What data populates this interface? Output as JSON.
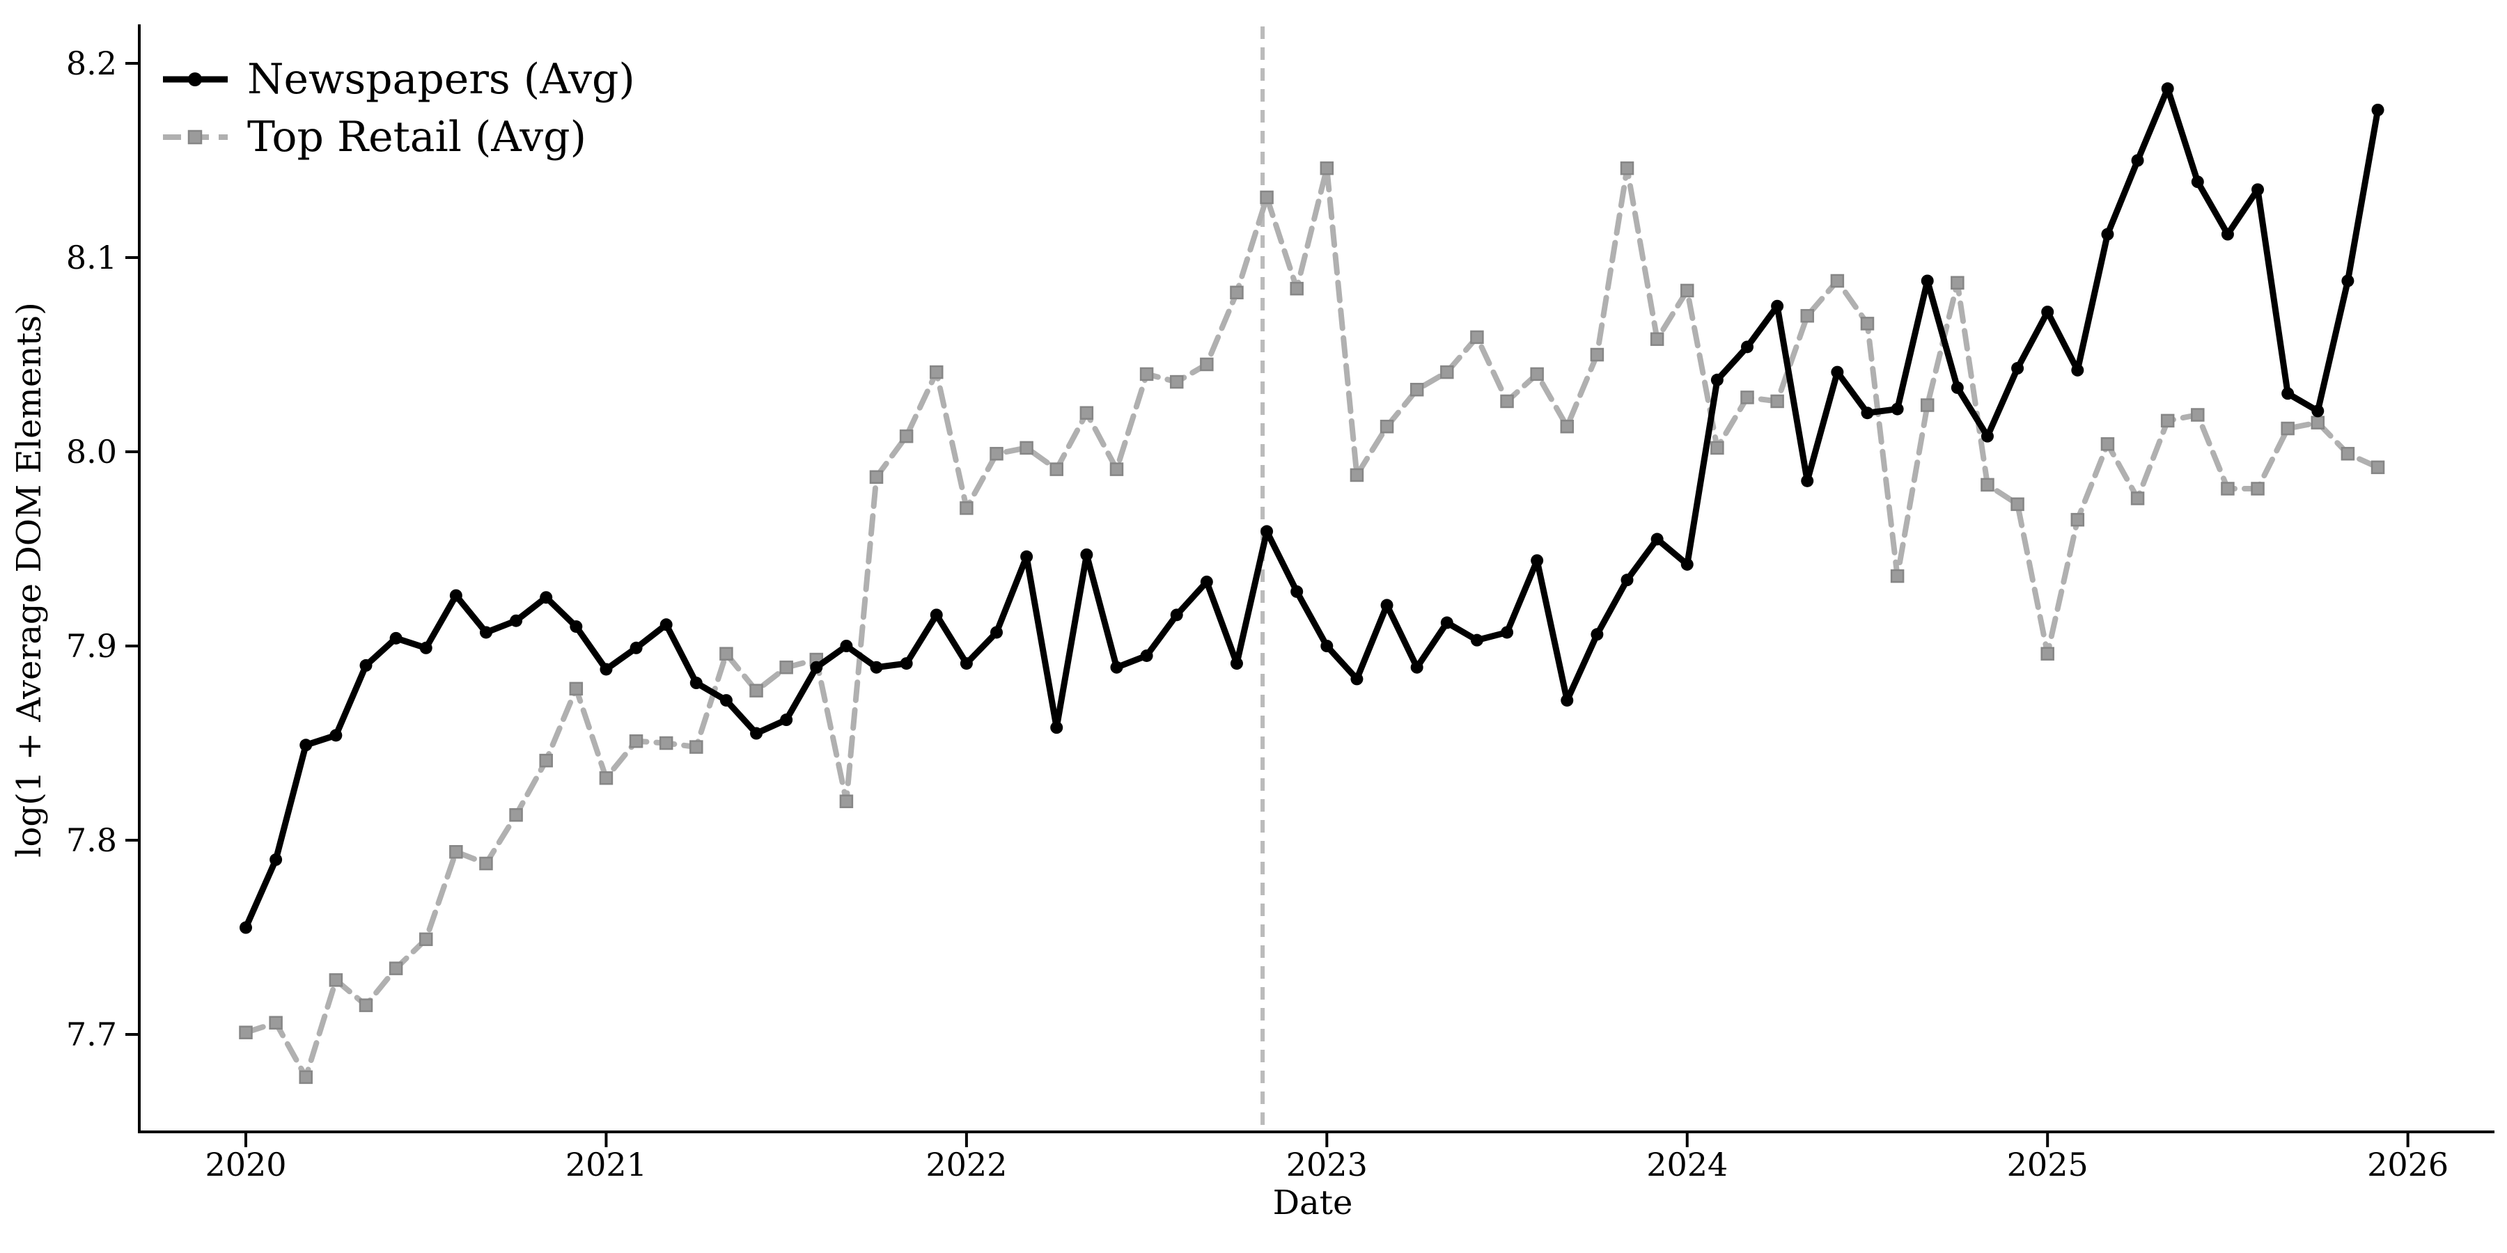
{
  "figure": {
    "background": "#ffffff",
    "accent_black": "#000000",
    "accent_gray": "#b0b0b0",
    "vline_color": "#bbbbbb"
  },
  "legend": {
    "position": "upper left",
    "entries": [
      {
        "label": "Newspapers (Avg)",
        "swatch": "solid-line-circle-marker"
      },
      {
        "label": "Top Retail (Avg)",
        "swatch": "dashed-line-square-marker"
      }
    ]
  },
  "chart_data": {
    "type": "line",
    "title": "",
    "xlabel": "Date",
    "ylabel": "log(1 + Average DOM Elements)",
    "x_start_month": "2020-01",
    "x_freq": "monthly",
    "n_points": 72,
    "x_tick_labels": [
      "2020",
      "2021",
      "2022",
      "2023",
      "2024",
      "2025",
      "2026"
    ],
    "y_tick_labels": [
      "8.2",
      "8.1",
      "8.0",
      "7.9",
      "7.8",
      "7.7"
    ],
    "y_tick_values": [
      8.2,
      8.1,
      8.0,
      7.9,
      7.8,
      7.7
    ],
    "ylim": [
      7.65,
      8.22
    ],
    "grid": false,
    "legend_position": "upper left",
    "series": [
      {
        "name": "Newspapers (Avg)",
        "style": "solid",
        "marker": "circle",
        "color": "#000000",
        "marker_color": "#000000",
        "values": [
          7.755,
          7.79,
          7.849,
          7.854,
          7.89,
          7.904,
          7.899,
          7.926,
          7.907,
          7.913,
          7.925,
          7.91,
          7.888,
          7.899,
          7.911,
          7.881,
          7.872,
          7.855,
          7.862,
          7.889,
          7.9,
          7.889,
          7.891,
          7.916,
          7.891,
          7.907,
          7.946,
          7.858,
          7.947,
          7.889,
          7.895,
          7.916,
          7.933,
          7.891,
          7.959,
          7.928,
          7.9,
          7.883,
          7.921,
          7.889,
          7.912,
          7.903,
          7.907,
          7.944,
          7.872,
          7.906,
          7.934,
          7.955,
          7.942,
          8.037,
          8.054,
          8.075,
          7.985,
          8.041,
          8.02,
          8.022,
          8.088,
          8.033,
          8.008,
          8.043,
          8.072,
          8.042,
          8.112,
          8.15,
          8.187,
          8.139,
          8.112,
          8.135,
          8.03,
          8.021,
          8.088,
          8.176
        ]
      },
      {
        "name": "Top Retail (Avg)",
        "style": "dashed",
        "marker": "square",
        "color": "#b0b0b0",
        "marker_color": "#9b9b9b",
        "marker_edge": "#868686",
        "values": [
          7.701,
          7.706,
          7.678,
          7.728,
          7.715,
          7.734,
          7.749,
          7.794,
          7.788,
          7.813,
          7.841,
          7.878,
          7.832,
          7.851,
          7.85,
          7.848,
          7.896,
          7.877,
          7.889,
          7.893,
          7.82,
          7.987,
          8.008,
          8.041,
          7.971,
          7.999,
          8.002,
          7.991,
          8.02,
          7.991,
          8.04,
          8.036,
          8.045,
          8.082,
          8.131,
          8.084,
          8.146,
          7.988,
          8.013,
          8.032,
          8.041,
          8.059,
          8.026,
          8.04,
          8.013,
          8.05,
          8.146,
          8.058,
          8.083,
          8.002,
          8.028,
          8.026,
          8.07,
          8.088,
          8.066,
          7.936,
          8.024,
          8.087,
          7.983,
          7.973,
          7.896,
          7.965,
          8.004,
          7.976,
          8.016,
          8.019,
          7.981,
          7.981,
          8.012,
          8.015,
          7.999,
          7.992
        ]
      }
    ],
    "annotations": [
      {
        "type": "vline",
        "x_month": "2022-11",
        "style": "dashed",
        "color": "#bbbbbb"
      }
    ]
  }
}
